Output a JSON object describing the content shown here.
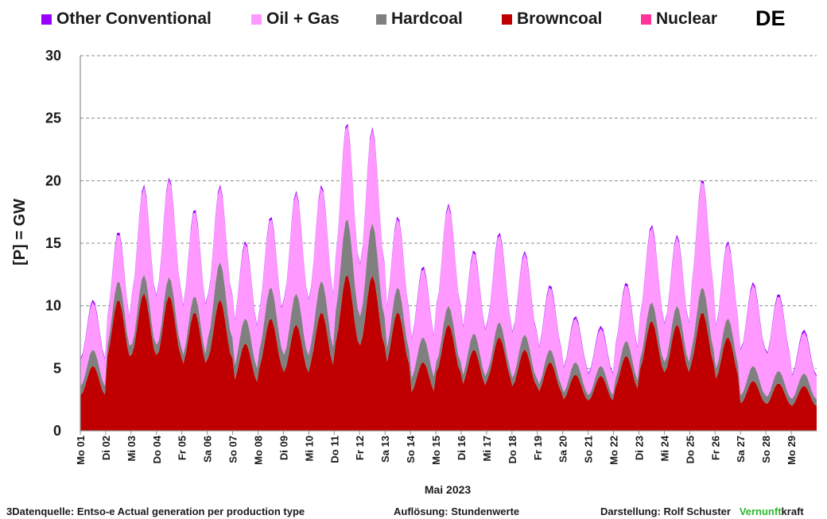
{
  "country": "DE",
  "footer": {
    "source": "3Datenquelle: Entso-e  Actual generation per production type",
    "resolution": "Auflösung: Stundenwerte",
    "author": "Darstellung:  Rolf Schuster",
    "brand_a": "Vernunft",
    "brand_b": "kraft"
  },
  "chart_data": {
    "type": "area",
    "stacked": true,
    "ylabel": "[P] = GW",
    "xlabel": "Mai 2023",
    "ylim": [
      0,
      30
    ],
    "yticks": [
      0,
      5,
      10,
      15,
      20,
      25,
      30
    ],
    "grid": "horizontal-dashed",
    "legend_position": "top",
    "categories": [
      "Mo 01",
      "Di 02",
      "Mi 03",
      "Do 04",
      "Fr 05",
      "Sa 06",
      "So 07",
      "Mo 08",
      "Di 09",
      "Mi 10",
      "Do 11",
      "Fr 12",
      "Sa 13",
      "So 14",
      "Mo 15",
      "Di 16",
      "Mi 17",
      "Do 18",
      "Fr 19",
      "Sa 20",
      "So 21",
      "Mo 22",
      "Di 23",
      "Mi 24",
      "Do 25",
      "Fr 26",
      "Sa 27",
      "So 28",
      "Mo 29"
    ],
    "series": [
      {
        "name": "Browncoal",
        "color": "#c00000",
        "values": [
          5.2,
          10.5,
          11.0,
          10.8,
          9.5,
          10.5,
          7.0,
          9.0,
          8.5,
          9.5,
          12.5,
          12.4,
          9.5,
          5.5,
          8.5,
          6.5,
          7.5,
          6.5,
          5.5,
          4.5,
          4.4,
          6.0,
          8.8,
          8.5,
          9.5,
          7.5,
          4.0,
          3.8,
          3.6
        ]
      },
      {
        "name": "Hardcoal",
        "color": "#808080",
        "values": [
          1.3,
          1.5,
          1.5,
          1.5,
          1.3,
          3.0,
          2.0,
          2.5,
          2.5,
          2.5,
          4.5,
          4.2,
          2.0,
          2.0,
          1.5,
          1.3,
          1.2,
          1.2,
          1.0,
          1.0,
          0.8,
          1.2,
          1.5,
          1.5,
          2.0,
          1.5,
          1.2,
          1.0,
          1.0
        ]
      },
      {
        "name": "Oil + Gas",
        "color": "#ff99ff",
        "values": [
          3.8,
          3.8,
          7.0,
          7.8,
          6.8,
          6.0,
          6.0,
          5.5,
          8.0,
          7.5,
          7.5,
          7.5,
          5.5,
          5.5,
          8.0,
          6.5,
          7.0,
          6.5,
          5.0,
          3.5,
          3.0,
          4.5,
          6.0,
          5.5,
          8.5,
          6.0,
          6.5,
          6.0,
          3.3
        ]
      },
      {
        "name": "Other Conventional",
        "color": "#9900ff",
        "values": [
          0.2,
          0.2,
          0.2,
          0.2,
          0.2,
          0.2,
          0.2,
          0.2,
          0.2,
          0.2,
          0.2,
          0.2,
          0.2,
          0.2,
          0.2,
          0.2,
          0.2,
          0.2,
          0.2,
          0.2,
          0.2,
          0.2,
          0.2,
          0.2,
          0.2,
          0.2,
          0.2,
          0.2,
          0.2
        ]
      },
      {
        "name": "Nuclear",
        "color": "#ff3399",
        "values": [
          0,
          0,
          0,
          0,
          0,
          0,
          0,
          0,
          0,
          0,
          0,
          0,
          0,
          0,
          0,
          0,
          0,
          0,
          0,
          0,
          0,
          0,
          0,
          0,
          0,
          0,
          0,
          0,
          0
        ]
      }
    ],
    "legend_order": [
      "Other Conventional",
      "Oil + Gas",
      "Hardcoal",
      "Browncoal",
      "Nuclear"
    ]
  }
}
